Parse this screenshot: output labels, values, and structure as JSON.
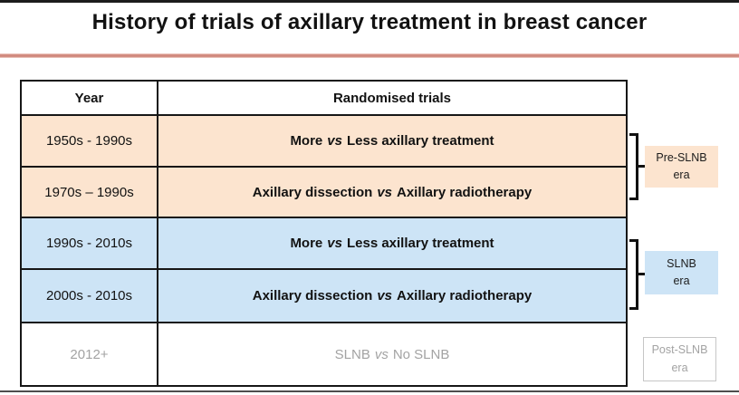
{
  "title": "History of trials of axillary treatment in breast cancer",
  "table": {
    "header": {
      "year": "Year",
      "trials": "Randomised trials"
    },
    "rows": [
      {
        "year": "1950s - 1990s",
        "trial": {
          "pre": "More",
          "vs": "vs",
          "post": "Less axillary treatment"
        },
        "theme": "peach"
      },
      {
        "year": "1970s – 1990s",
        "trial": {
          "pre": "Axillary dissection",
          "vs": "vs",
          "post": "Axillary radiotherapy"
        },
        "theme": "peach"
      },
      {
        "year": "1990s - 2010s",
        "trial": {
          "pre": "More",
          "vs": "vs",
          "post": "Less axillary treatment"
        },
        "theme": "blue"
      },
      {
        "year": "2000s - 2010s",
        "trial": {
          "pre": "Axillary dissection",
          "vs": "vs",
          "post": "Axillary radiotherapy"
        },
        "theme": "blue"
      },
      {
        "year": "2012+",
        "trial": {
          "pre": "SLNB",
          "vs": "vs",
          "post": "No SLNB"
        },
        "theme": "muted"
      }
    ]
  },
  "era_labels": [
    {
      "line1": "Pre-SLNB",
      "line2": "era"
    },
    {
      "line1": "SLNB",
      "line2": "era"
    },
    {
      "line1": "Post-SLNB",
      "line2": "era"
    }
  ],
  "colors": {
    "peach_fill": "#fce4cf",
    "blue_fill": "#cde4f6",
    "table_border": "#161616",
    "title_underline": "#cf887c",
    "muted_text": "#a3a3a3",
    "muted_box_border": "#c6c6c6"
  }
}
